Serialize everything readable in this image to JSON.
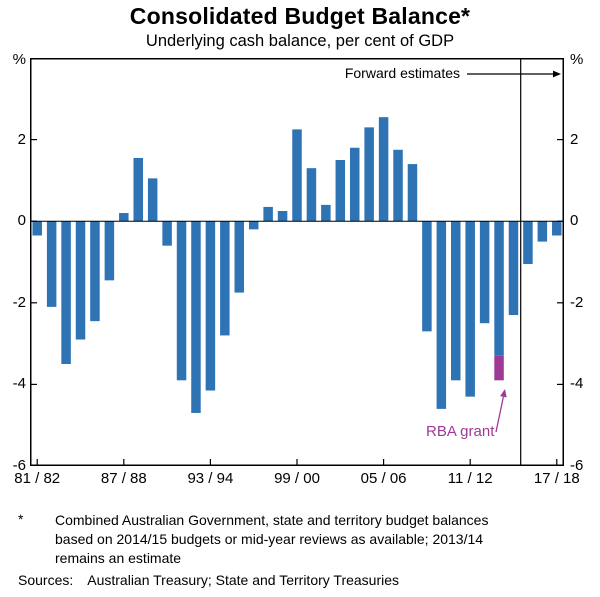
{
  "chart_data": {
    "type": "bar",
    "title": "Consolidated Budget Balance*",
    "subtitle": "Underlying cash balance, per cent of GDP",
    "unit": "%",
    "ylim": [
      -6,
      4
    ],
    "yticks": [
      2,
      0,
      -2,
      -4,
      -6
    ],
    "grid": false,
    "categories": [
      "81/82",
      "82/83",
      "83/84",
      "84/85",
      "85/86",
      "86/87",
      "87/88",
      "88/89",
      "89/90",
      "90/91",
      "91/92",
      "92/93",
      "93/94",
      "94/95",
      "95/96",
      "96/97",
      "97/98",
      "98/99",
      "99/00",
      "00/01",
      "01/02",
      "02/03",
      "03/04",
      "04/05",
      "05/06",
      "06/07",
      "07/08",
      "08/09",
      "09/10",
      "10/11",
      "11/12",
      "12/13",
      "13/14",
      "14/15",
      "15/16",
      "16/17",
      "17/18"
    ],
    "values": [
      -0.35,
      -2.1,
      -3.5,
      -2.9,
      -2.45,
      -1.45,
      0.2,
      1.55,
      1.05,
      -0.6,
      -3.9,
      -4.7,
      -4.15,
      -2.8,
      -1.75,
      -0.2,
      0.35,
      0.25,
      2.25,
      1.3,
      0.4,
      1.5,
      1.8,
      2.3,
      2.55,
      1.75,
      1.4,
      -2.7,
      -4.6,
      -3.9,
      -4.3,
      -2.5,
      -3.9,
      -2.3,
      -1.05,
      -0.5,
      -0.35
    ],
    "x_tick_labels": [
      "81 / 82",
      "87 / 88",
      "93 / 94",
      "99 / 00",
      "05 / 06",
      "11 / 12",
      "17 / 18"
    ],
    "x_tick_indices": [
      0,
      6,
      12,
      18,
      24,
      30,
      36
    ],
    "bar_color": "#2E74B5",
    "grant_color": "#9E3A96",
    "rba_grant": {
      "year": "13/14",
      "from": -3.3,
      "to": -3.9
    },
    "forward_line_between": [
      "14/15",
      "15/16"
    ],
    "annotations": {
      "forward_estimates": "Forward estimates",
      "rba_grant": "RBA grant"
    }
  },
  "footnote": {
    "marker": "*",
    "lines": [
      "Combined Australian Government, state and territory budget balances",
      "based on 2014/15 budgets or mid-year reviews as available; 2013/14",
      "remains an estimate"
    ]
  },
  "sources": {
    "label": "Sources:",
    "text": "Australian Treasury; State and Territory Treasuries"
  }
}
